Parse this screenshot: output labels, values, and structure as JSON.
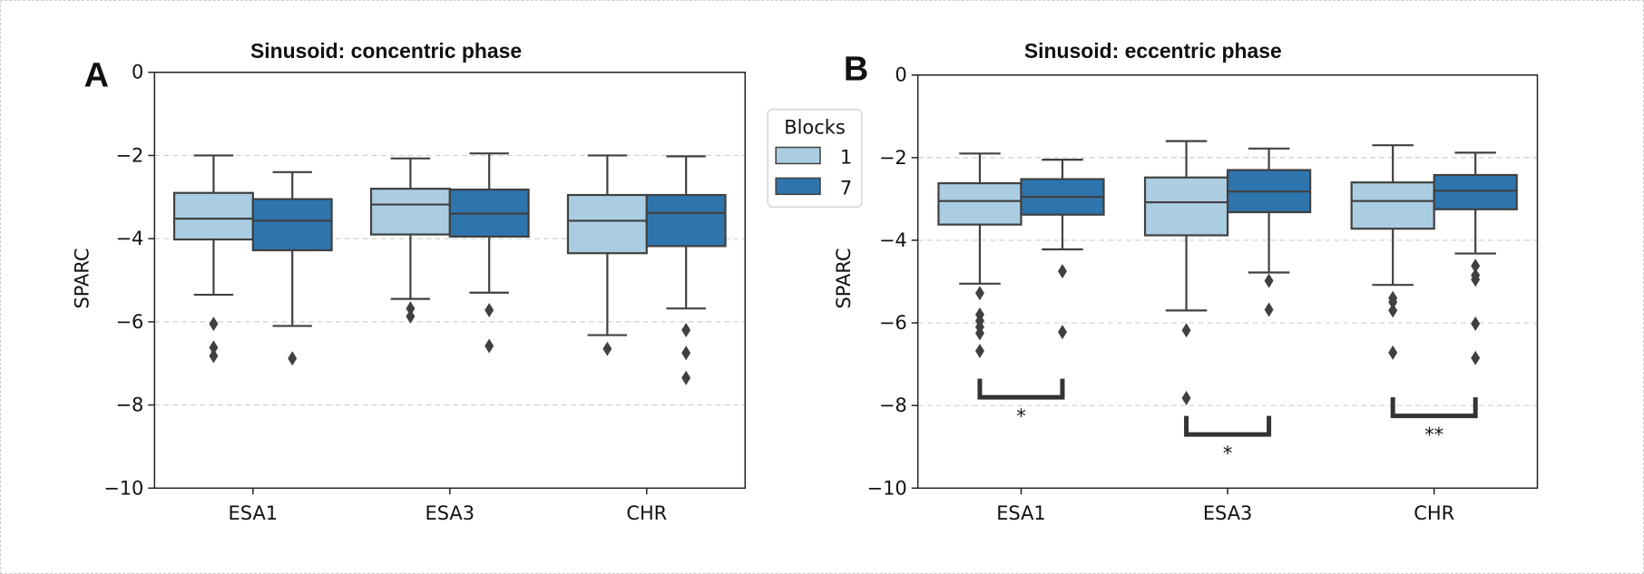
{
  "colors": {
    "block1": "#aacde2",
    "block7": "#2e75ae",
    "edge": "#404040",
    "grid": "#cfcfcf",
    "bracket": "#333333"
  },
  "legend": {
    "title": "Blocks",
    "entries": [
      "1",
      "7"
    ]
  },
  "chart_data": [
    {
      "type": "boxplot",
      "panel_letter": "A",
      "title": "Sinusoid: concentric phase",
      "xlabel": "",
      "ylabel": "SPARC",
      "ylim": [
        -10,
        0
      ],
      "yticks": [
        "0",
        "−2",
        "−4",
        "−6",
        "−8",
        "−10"
      ],
      "ytick_values": [
        0,
        -2,
        -4,
        -6,
        -8,
        -10
      ],
      "grid": "y dashed",
      "categories": [
        "ESA1",
        "ESA3",
        "CHR"
      ],
      "series": [
        {
          "name": "1",
          "boxes": [
            {
              "whislo": -5.35,
              "q1": -4.02,
              "med": -3.52,
              "q3": -2.9,
              "whishi": -2.0,
              "fliers": [
                -6.05,
                -6.62,
                -6.82
              ]
            },
            {
              "whislo": -5.45,
              "q1": -3.9,
              "med": -3.18,
              "q3": -2.8,
              "whishi": -2.07,
              "fliers": [
                -5.68,
                -5.87
              ]
            },
            {
              "whislo": -6.32,
              "q1": -4.35,
              "med": -3.57,
              "q3": -2.95,
              "whishi": -2.0,
              "fliers": [
                -6.65
              ]
            }
          ]
        },
        {
          "name": "7",
          "boxes": [
            {
              "whislo": -6.1,
              "q1": -4.28,
              "med": -3.57,
              "q3": -3.05,
              "whishi": -2.4,
              "fliers": [
                -6.88
              ]
            },
            {
              "whislo": -5.3,
              "q1": -3.95,
              "med": -3.4,
              "q3": -2.82,
              "whishi": -1.95,
              "fliers": [
                -5.72,
                -6.58
              ]
            },
            {
              "whislo": -5.68,
              "q1": -4.18,
              "med": -3.38,
              "q3": -2.95,
              "whishi": -2.02,
              "fliers": [
                -6.2,
                -6.75,
                -7.35
              ]
            }
          ]
        }
      ],
      "annotations": []
    },
    {
      "type": "boxplot",
      "panel_letter": "B",
      "title": "Sinusoid: eccentric phase",
      "xlabel": "",
      "ylabel": "SPARC",
      "ylim": [
        -10,
        0
      ],
      "yticks": [
        "0",
        "−2",
        "−4",
        "−6",
        "−8",
        "−10"
      ],
      "ytick_values": [
        0,
        -2,
        -4,
        -6,
        -8,
        -10
      ],
      "grid": "y dashed",
      "categories": [
        "ESA1",
        "ESA3",
        "CHR"
      ],
      "series": [
        {
          "name": "1",
          "boxes": [
            {
              "whislo": -5.05,
              "q1": -3.62,
              "med": -3.05,
              "q3": -2.62,
              "whishi": -1.9,
              "fliers": [
                -5.28,
                -5.8,
                -5.95,
                -6.1,
                -6.25,
                -6.68
              ]
            },
            {
              "whislo": -5.7,
              "q1": -3.88,
              "med": -3.08,
              "q3": -2.48,
              "whishi": -1.6,
              "fliers": [
                -6.18,
                -7.82
              ]
            },
            {
              "whislo": -5.08,
              "q1": -3.72,
              "med": -3.05,
              "q3": -2.6,
              "whishi": -1.7,
              "fliers": [
                -5.4,
                -5.5,
                -5.7,
                -6.72
              ]
            }
          ]
        },
        {
          "name": "7",
          "boxes": [
            {
              "whislo": -4.22,
              "q1": -3.38,
              "med": -2.95,
              "q3": -2.52,
              "whishi": -2.05,
              "fliers": [
                -4.75,
                -6.22
              ]
            },
            {
              "whislo": -4.78,
              "q1": -3.32,
              "med": -2.82,
              "q3": -2.3,
              "whishi": -1.78,
              "fliers": [
                -4.98,
                -5.68
              ]
            },
            {
              "whislo": -4.32,
              "q1": -3.25,
              "med": -2.8,
              "q3": -2.42,
              "whishi": -1.88,
              "fliers": [
                -4.62,
                -4.85,
                -4.95,
                -6.02,
                -6.85
              ]
            }
          ]
        }
      ],
      "annotations": [
        {
          "category_index": 0,
          "y": -7.8,
          "top": -7.35,
          "label": "*"
        },
        {
          "category_index": 1,
          "y": -8.7,
          "top": -8.25,
          "label": "*"
        },
        {
          "category_index": 2,
          "y": -8.25,
          "top": -7.8,
          "label": "**"
        }
      ]
    }
  ]
}
